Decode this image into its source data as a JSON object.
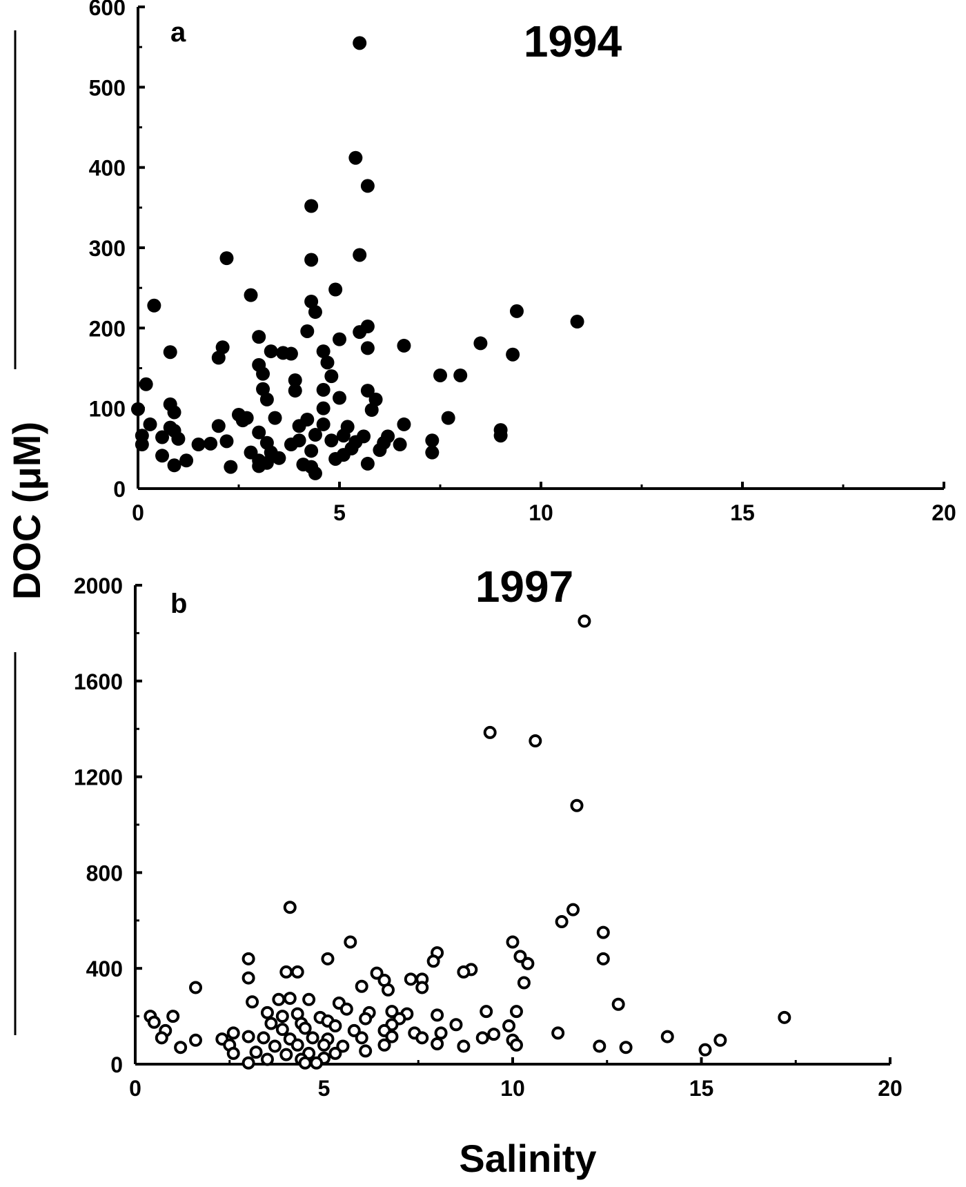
{
  "figure": {
    "ylabel": "DOC (μM)",
    "xlabel": "Salinity"
  },
  "chart_data": [
    {
      "type": "scatter",
      "panel": "a",
      "title": "1994",
      "marker": "filled",
      "xlim": [
        0,
        20
      ],
      "ylim": [
        0,
        600
      ],
      "x_ticks": [
        "0",
        "5",
        "10",
        "15",
        "20"
      ],
      "y_ticks": [
        "0",
        "100",
        "200",
        "300",
        "400",
        "500",
        "600"
      ],
      "points": [
        [
          5.5,
          555
        ],
        [
          5.4,
          412
        ],
        [
          5.7,
          377
        ],
        [
          4.3,
          352
        ],
        [
          2.2,
          287
        ],
        [
          4.3,
          285
        ],
        [
          5.5,
          291
        ],
        [
          2.8,
          241
        ],
        [
          4.9,
          248
        ],
        [
          0.4,
          228
        ],
        [
          4.3,
          233
        ],
        [
          4.4,
          220
        ],
        [
          9.4,
          221
        ],
        [
          10.9,
          208
        ],
        [
          5.7,
          202
        ],
        [
          4.2,
          196
        ],
        [
          5.5,
          195
        ],
        [
          3.0,
          189
        ],
        [
          5.0,
          186
        ],
        [
          2.1,
          176
        ],
        [
          6.6,
          178
        ],
        [
          8.5,
          181
        ],
        [
          0.8,
          170
        ],
        [
          2.0,
          163
        ],
        [
          3.3,
          171
        ],
        [
          3.6,
          169
        ],
        [
          3.8,
          168
        ],
        [
          4.6,
          171
        ],
        [
          5.7,
          175
        ],
        [
          9.3,
          167
        ],
        [
          3.0,
          154
        ],
        [
          4.7,
          157
        ],
        [
          3.1,
          143
        ],
        [
          4.8,
          140
        ],
        [
          7.5,
          141
        ],
        [
          8.0,
          141
        ],
        [
          0.2,
          130
        ],
        [
          3.9,
          135
        ],
        [
          3.9,
          122
        ],
        [
          4.6,
          123
        ],
        [
          5.7,
          122
        ],
        [
          3.1,
          124
        ],
        [
          3.2,
          111
        ],
        [
          5.0,
          113
        ],
        [
          5.9,
          111
        ],
        [
          0.8,
          105
        ],
        [
          0.0,
          99
        ],
        [
          0.9,
          95
        ],
        [
          4.6,
          100
        ],
        [
          5.8,
          98
        ],
        [
          2.5,
          92
        ],
        [
          2.7,
          88
        ],
        [
          3.4,
          88
        ],
        [
          4.2,
          86
        ],
        [
          7.7,
          88
        ],
        [
          0.3,
          80
        ],
        [
          2.0,
          78
        ],
        [
          0.8,
          76
        ],
        [
          0.9,
          72
        ],
        [
          2.6,
          85
        ],
        [
          4.0,
          78
        ],
        [
          4.6,
          80
        ],
        [
          5.2,
          77
        ],
        [
          6.6,
          80
        ],
        [
          9.0,
          73
        ],
        [
          0.1,
          66
        ],
        [
          0.6,
          64
        ],
        [
          1.0,
          62
        ],
        [
          3.0,
          70
        ],
        [
          4.4,
          67
        ],
        [
          5.1,
          66
        ],
        [
          5.6,
          65
        ],
        [
          6.2,
          65
        ],
        [
          7.3,
          60
        ],
        [
          9.0,
          66
        ],
        [
          0.1,
          55
        ],
        [
          1.5,
          55
        ],
        [
          1.8,
          56
        ],
        [
          2.2,
          59
        ],
        [
          3.2,
          57
        ],
        [
          3.8,
          55
        ],
        [
          4.0,
          60
        ],
        [
          4.8,
          60
        ],
        [
          5.4,
          58
        ],
        [
          6.1,
          57
        ],
        [
          6.5,
          55
        ],
        [
          0.6,
          41
        ],
        [
          2.8,
          45
        ],
        [
          3.3,
          45
        ],
        [
          4.3,
          47
        ],
        [
          5.3,
          50
        ],
        [
          6.0,
          48
        ],
        [
          7.3,
          45
        ],
        [
          1.2,
          35
        ],
        [
          3.0,
          35
        ],
        [
          3.5,
          38
        ],
        [
          4.9,
          37
        ],
        [
          5.1,
          42
        ],
        [
          0.9,
          29
        ],
        [
          2.3,
          27
        ],
        [
          3.0,
          28
        ],
        [
          3.2,
          32
        ],
        [
          4.1,
          30
        ],
        [
          4.3,
          27
        ],
        [
          5.7,
          31
        ],
        [
          4.4,
          19
        ]
      ]
    },
    {
      "type": "scatter",
      "panel": "b",
      "title": "1997",
      "marker": "open",
      "xlim": [
        0,
        20
      ],
      "ylim": [
        0,
        2000
      ],
      "x_ticks": [
        "0",
        "5",
        "10",
        "15",
        "20"
      ],
      "y_ticks": [
        "0",
        "400",
        "800",
        "1200",
        "1600",
        "2000"
      ],
      "points": [
        [
          11.9,
          1850
        ],
        [
          9.4,
          1385
        ],
        [
          10.6,
          1350
        ],
        [
          11.7,
          1080
        ],
        [
          4.1,
          655
        ],
        [
          11.6,
          645
        ],
        [
          11.3,
          595
        ],
        [
          12.4,
          550
        ],
        [
          5.7,
          510
        ],
        [
          10.0,
          510
        ],
        [
          8.0,
          465
        ],
        [
          10.2,
          450
        ],
        [
          5.1,
          440
        ],
        [
          7.9,
          430
        ],
        [
          12.4,
          440
        ],
        [
          3.0,
          440
        ],
        [
          10.4,
          420
        ],
        [
          8.9,
          395
        ],
        [
          4.0,
          385
        ],
        [
          4.3,
          385
        ],
        [
          6.4,
          380
        ],
        [
          8.7,
          385
        ],
        [
          3.0,
          360
        ],
        [
          6.6,
          350
        ],
        [
          7.3,
          355
        ],
        [
          7.6,
          355
        ],
        [
          10.3,
          340
        ],
        [
          1.6,
          320
        ],
        [
          7.6,
          320
        ],
        [
          6.0,
          325
        ],
        [
          6.7,
          310
        ],
        [
          3.1,
          260
        ],
        [
          3.8,
          270
        ],
        [
          4.1,
          275
        ],
        [
          4.6,
          270
        ],
        [
          5.4,
          255
        ],
        [
          5.6,
          230
        ],
        [
          3.5,
          215
        ],
        [
          4.3,
          210
        ],
        [
          6.2,
          215
        ],
        [
          6.8,
          220
        ],
        [
          7.2,
          210
        ],
        [
          8.0,
          205
        ],
        [
          10.1,
          220
        ],
        [
          9.3,
          220
        ],
        [
          12.8,
          250
        ],
        [
          0.4,
          200
        ],
        [
          1.0,
          200
        ],
        [
          3.9,
          200
        ],
        [
          4.9,
          195
        ],
        [
          5.1,
          180
        ],
        [
          6.1,
          190
        ],
        [
          7.0,
          190
        ],
        [
          17.2,
          195
        ],
        [
          0.5,
          175
        ],
        [
          3.6,
          170
        ],
        [
          4.4,
          170
        ],
        [
          5.3,
          160
        ],
        [
          6.8,
          165
        ],
        [
          8.5,
          165
        ],
        [
          9.9,
          160
        ],
        [
          0.8,
          140
        ],
        [
          2.6,
          130
        ],
        [
          3.9,
          145
        ],
        [
          4.5,
          150
        ],
        [
          5.8,
          140
        ],
        [
          6.6,
          140
        ],
        [
          7.4,
          130
        ],
        [
          8.1,
          130
        ],
        [
          9.5,
          125
        ],
        [
          11.2,
          130
        ],
        [
          0.7,
          110
        ],
        [
          1.6,
          100
        ],
        [
          2.3,
          105
        ],
        [
          3.0,
          115
        ],
        [
          3.4,
          110
        ],
        [
          4.1,
          105
        ],
        [
          4.7,
          110
        ],
        [
          5.1,
          105
        ],
        [
          6.0,
          110
        ],
        [
          6.8,
          115
        ],
        [
          7.6,
          110
        ],
        [
          9.2,
          110
        ],
        [
          14.1,
          115
        ],
        [
          15.5,
          100
        ],
        [
          10.0,
          100
        ],
        [
          1.2,
          70
        ],
        [
          2.5,
          80
        ],
        [
          3.7,
          75
        ],
        [
          4.3,
          80
        ],
        [
          5.0,
          80
        ],
        [
          5.5,
          75
        ],
        [
          6.6,
          80
        ],
        [
          8.0,
          85
        ],
        [
          8.7,
          75
        ],
        [
          10.1,
          80
        ],
        [
          12.3,
          75
        ],
        [
          13.0,
          70
        ],
        [
          15.1,
          60
        ],
        [
          2.6,
          45
        ],
        [
          3.2,
          50
        ],
        [
          4.0,
          40
        ],
        [
          4.6,
          45
        ],
        [
          5.3,
          45
        ],
        [
          6.1,
          55
        ],
        [
          3.5,
          20
        ],
        [
          4.4,
          20
        ],
        [
          5.0,
          25
        ],
        [
          3.0,
          5
        ],
        [
          4.5,
          5
        ],
        [
          4.8,
          5
        ]
      ]
    }
  ]
}
